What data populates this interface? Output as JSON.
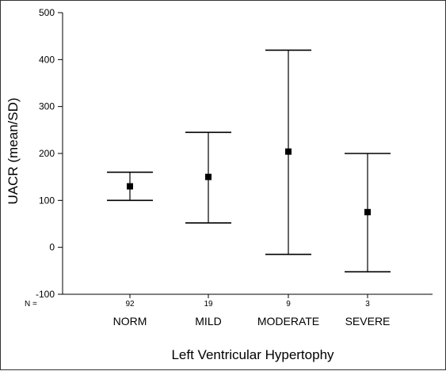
{
  "chart_data": {
    "type": "errorbar",
    "title": "",
    "xlabel": "Left Ventricular Hypertophy",
    "ylabel": "UACR (mean/SD)",
    "ylim": [
      -100,
      500
    ],
    "yticks": [
      "500",
      "400",
      "300",
      "200",
      "100",
      "0",
      "-100"
    ],
    "grid": false,
    "n_prefix": "N =",
    "categories": [
      "NORM",
      "MILD",
      "MODERATE",
      "SEVERE"
    ],
    "n_values": [
      "92",
      "19",
      "9",
      "3"
    ],
    "means": [
      130,
      150,
      204,
      75
    ],
    "upper": [
      160,
      245,
      420,
      200
    ],
    "lower": [
      100,
      52,
      -15,
      -52
    ]
  }
}
